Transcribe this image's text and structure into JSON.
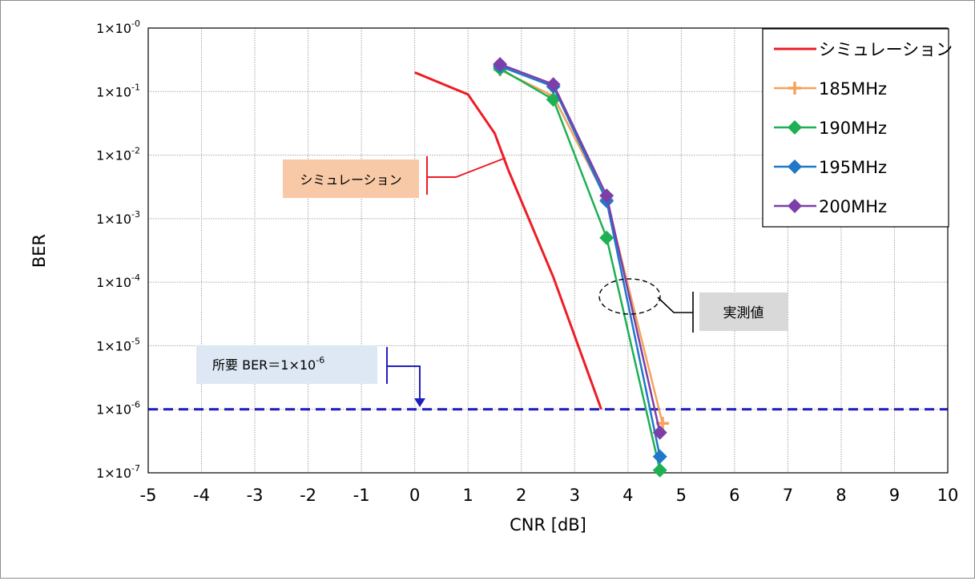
{
  "chart_data": {
    "type": "line",
    "xlabel": "CNR [dB]",
    "ylabel": "BER",
    "xlim": [
      -5,
      10
    ],
    "x_ticks": [
      "-5",
      "-4",
      "-3",
      "-2",
      "-1",
      "0",
      "1",
      "2",
      "3",
      "4",
      "5",
      "6",
      "7",
      "8",
      "9",
      "10"
    ],
    "y_scale": "log",
    "ylim": [
      1e-07,
      1
    ],
    "y_ticks": [
      {
        "mant": "1×10",
        "exp": "-0"
      },
      {
        "mant": "1×10",
        "exp": "-1"
      },
      {
        "mant": "1×10",
        "exp": "-2"
      },
      {
        "mant": "1×10",
        "exp": "-3"
      },
      {
        "mant": "1×10",
        "exp": "-4"
      },
      {
        "mant": "1×10",
        "exp": "-5"
      },
      {
        "mant": "1×10",
        "exp": "-6"
      },
      {
        "mant": "1×10",
        "exp": "-7"
      }
    ],
    "grid": true,
    "legend_position": "top-right",
    "series": [
      {
        "name": "シミュレーション",
        "color": "#ee1c25",
        "marker": "none",
        "x": [
          0,
          1,
          1.5,
          1.75,
          2.6,
          3.5
        ],
        "y": [
          0.2,
          0.09,
          0.022,
          0.006,
          0.00012,
          1e-06
        ]
      },
      {
        "name": "185MHz",
        "color": "#f5a25d",
        "marker": "plus",
        "x": [
          1.6,
          2.6,
          3.6,
          4.65
        ],
        "y": [
          0.22,
          0.085,
          0.002,
          6e-07
        ]
      },
      {
        "name": "190MHz",
        "color": "#1eb053",
        "marker": "diamond",
        "x": [
          1.6,
          2.6,
          3.6,
          4.6
        ],
        "y": [
          0.23,
          0.075,
          0.0005,
          1.1e-07
        ]
      },
      {
        "name": "195MHz",
        "color": "#1f78c8",
        "marker": "diamond",
        "x": [
          1.6,
          2.6,
          3.6,
          4.6
        ],
        "y": [
          0.25,
          0.12,
          0.0019,
          1.8e-07
        ]
      },
      {
        "name": "200MHz",
        "color": "#7c3fa9",
        "marker": "diamond",
        "x": [
          1.6,
          2.6,
          3.6,
          4.6
        ],
        "y": [
          0.27,
          0.13,
          0.0023,
          4.3e-07
        ]
      }
    ],
    "reference_line": {
      "y": 1e-06,
      "color": "#1f1fbf"
    },
    "annotations": {
      "simulation_label": "シミュレーション",
      "measured_label": "実測値",
      "required_ber": {
        "text": "所要 BER＝1×10",
        "exp": "-6"
      }
    }
  }
}
